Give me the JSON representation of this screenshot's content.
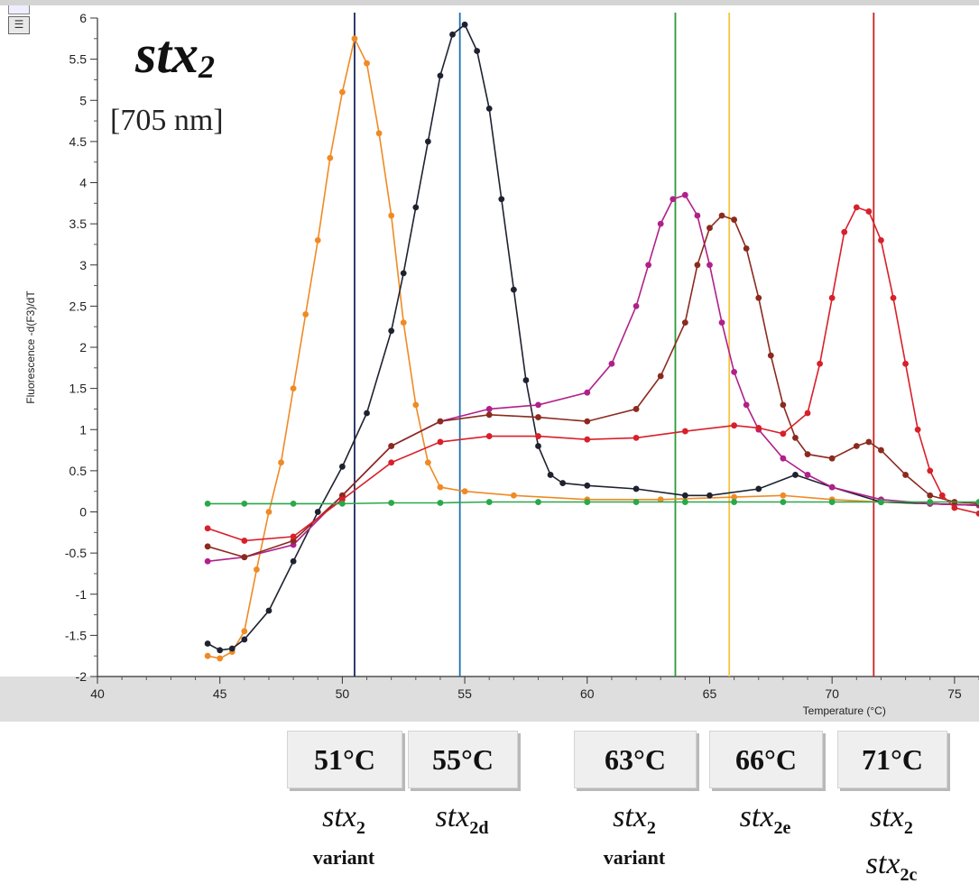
{
  "chart_data": {
    "type": "line",
    "title": "stx",
    "title_subscript": "2",
    "subtitle": "[705 nm]",
    "xlabel": "Temperature (°C)",
    "ylabel": "Fluorescence -d(F3)/dT",
    "xlim": [
      40,
      76
    ],
    "ylim": [
      -2,
      6
    ],
    "xticks": [
      40,
      45,
      50,
      55,
      60,
      65,
      70,
      75
    ],
    "yticks": [
      -2,
      -1.5,
      -1,
      -0.5,
      0,
      0.5,
      1,
      1.5,
      2,
      2.5,
      3,
      3.5,
      4,
      4.5,
      5,
      5.5,
      6
    ],
    "grid": false,
    "vertical_lines": [
      {
        "x": 50.5,
        "color": "#1a2a5a"
      },
      {
        "x": 54.8,
        "color": "#1f6fb5"
      },
      {
        "x": 63.6,
        "color": "#2a9a3a"
      },
      {
        "x": 65.8,
        "color": "#f5c542"
      },
      {
        "x": 71.7,
        "color": "#cc2222"
      }
    ],
    "series": [
      {
        "color": "#f08a24",
        "x": [
          44.5,
          45.0,
          45.5,
          46.0,
          46.5,
          47.0,
          47.5,
          48.0,
          48.5,
          49.0,
          49.5,
          50.0,
          50.5,
          51.0,
          51.5,
          52.0,
          52.5,
          53.0,
          53.5,
          54.0,
          55,
          57,
          60,
          63,
          66,
          68,
          70,
          72,
          74,
          76
        ],
        "y": [
          -1.75,
          -1.78,
          -1.7,
          -1.45,
          -0.7,
          0.0,
          0.6,
          1.5,
          2.4,
          3.3,
          4.3,
          5.1,
          5.75,
          5.45,
          4.6,
          3.6,
          2.3,
          1.3,
          0.6,
          0.3,
          0.25,
          0.2,
          0.15,
          0.15,
          0.18,
          0.2,
          0.15,
          0.12,
          0.1,
          0.08
        ]
      },
      {
        "color": "#1e2230",
        "x": [
          44.5,
          45.0,
          45.5,
          46.0,
          47.0,
          48.0,
          49.0,
          50.0,
          51.0,
          52.0,
          52.5,
          53.0,
          53.5,
          54.0,
          54.5,
          55.0,
          55.5,
          56.0,
          56.5,
          57.0,
          57.5,
          58.0,
          58.5,
          59.0,
          60,
          62,
          64,
          65,
          67,
          68.5,
          70,
          72,
          74,
          76
        ],
        "y": [
          -1.6,
          -1.68,
          -1.66,
          -1.55,
          -1.2,
          -0.6,
          0.0,
          0.55,
          1.2,
          2.2,
          2.9,
          3.7,
          4.5,
          5.3,
          5.8,
          5.92,
          5.6,
          4.9,
          3.8,
          2.7,
          1.6,
          0.8,
          0.45,
          0.35,
          0.32,
          0.28,
          0.2,
          0.2,
          0.28,
          0.45,
          0.3,
          0.12,
          0.1,
          0.08
        ]
      },
      {
        "color": "#b0208a",
        "x": [
          44.5,
          46,
          48,
          50,
          52,
          54,
          56,
          58,
          60,
          61,
          62,
          62.5,
          63,
          63.5,
          64,
          64.5,
          65,
          65.5,
          66,
          66.5,
          67,
          68,
          69,
          70,
          72,
          74,
          76
        ],
        "y": [
          -0.6,
          -0.55,
          -0.4,
          0.2,
          0.8,
          1.1,
          1.25,
          1.3,
          1.45,
          1.8,
          2.5,
          3.0,
          3.5,
          3.8,
          3.85,
          3.6,
          3.0,
          2.3,
          1.7,
          1.3,
          1.0,
          0.65,
          0.45,
          0.3,
          0.15,
          0.1,
          0.08
        ]
      },
      {
        "color": "#8b2a1e",
        "x": [
          44.5,
          46,
          48,
          50,
          52,
          54,
          56,
          58,
          60,
          62,
          63,
          64,
          64.5,
          65,
          65.5,
          66,
          66.5,
          67,
          67.5,
          68,
          68.5,
          69,
          70,
          71,
          71.5,
          72,
          73,
          74,
          75,
          76
        ],
        "y": [
          -0.42,
          -0.55,
          -0.35,
          0.2,
          0.8,
          1.1,
          1.18,
          1.15,
          1.1,
          1.25,
          1.65,
          2.3,
          3.0,
          3.45,
          3.6,
          3.55,
          3.2,
          2.6,
          1.9,
          1.3,
          0.9,
          0.7,
          0.65,
          0.8,
          0.85,
          0.75,
          0.45,
          0.2,
          0.12,
          0.1
        ]
      },
      {
        "color": "#d8202a",
        "x": [
          44.5,
          46,
          48,
          50,
          52,
          54,
          56,
          58,
          60,
          62,
          64,
          66,
          67,
          68,
          69,
          69.5,
          70,
          70.5,
          71,
          71.5,
          72,
          72.5,
          73,
          73.5,
          74,
          74.5,
          75,
          76
        ],
        "y": [
          -0.2,
          -0.35,
          -0.3,
          0.15,
          0.6,
          0.85,
          0.92,
          0.92,
          0.88,
          0.9,
          0.98,
          1.05,
          1.02,
          0.95,
          1.2,
          1.8,
          2.6,
          3.4,
          3.7,
          3.65,
          3.3,
          2.6,
          1.8,
          1.0,
          0.5,
          0.2,
          0.05,
          -0.02
        ]
      },
      {
        "color": "#2aa84a",
        "x": [
          44.5,
          46,
          48,
          50,
          52,
          54,
          56,
          58,
          60,
          62,
          64,
          66,
          68,
          70,
          72,
          74,
          76
        ],
        "y": [
          0.1,
          0.1,
          0.1,
          0.1,
          0.11,
          0.11,
          0.12,
          0.12,
          0.12,
          0.12,
          0.12,
          0.12,
          0.12,
          0.12,
          0.12,
          0.12,
          0.12
        ]
      }
    ]
  },
  "temperature_boxes": [
    {
      "label": "51°C"
    },
    {
      "label": "55°C"
    },
    {
      "label": "63°C"
    },
    {
      "label": "66°C"
    },
    {
      "label": "71°C"
    }
  ],
  "gene_labels": [
    {
      "base": "stx",
      "sub": "2",
      "line2": "variant"
    },
    {
      "base": "stx",
      "sub": "2d",
      "line2": ""
    },
    {
      "base": "stx",
      "sub": "2",
      "line2": "variant"
    },
    {
      "base": "stx",
      "sub": "2e",
      "line2": ""
    },
    {
      "base": "stx",
      "sub": "2",
      "line2_base": "stx",
      "line2_sub": "2c"
    }
  ]
}
